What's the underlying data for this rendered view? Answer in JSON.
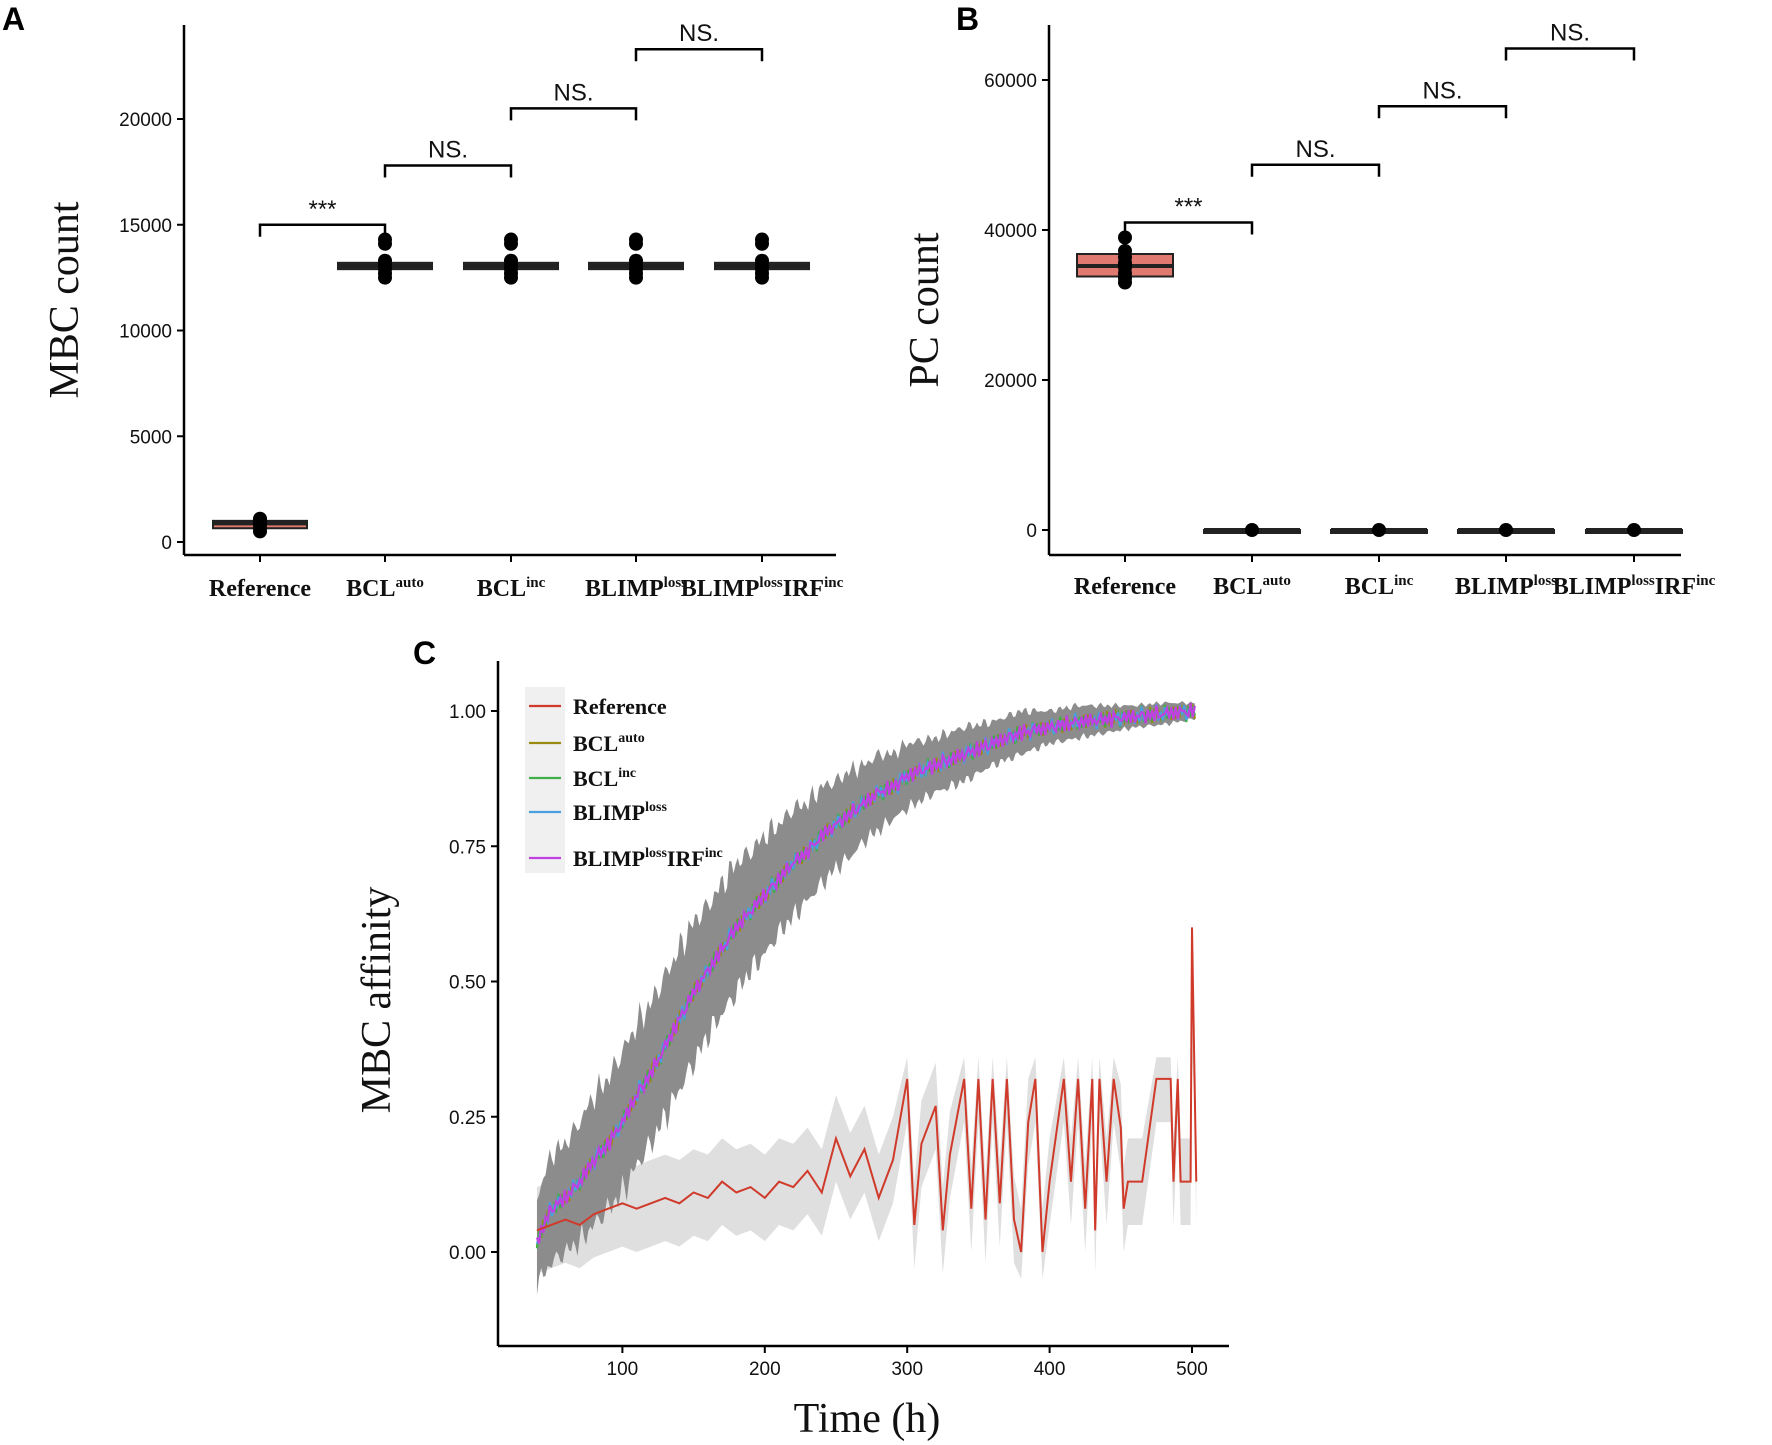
{
  "colors": {
    "reference": "#e07a70",
    "box_other": "#3a3a3a",
    "ref_line": "#d03a2a",
    "bcl_auto": "#9a8a10",
    "bcl_inc": "#3fae49",
    "blimp_loss": "#4a9fe0",
    "blimp_irf": "#c040e0",
    "band_dark": "#8c8c8c",
    "band_light": "#dcdcdc",
    "legend_bg": "#f0f0f0"
  },
  "categories": [
    {
      "base": "Reference",
      "sup": ""
    },
    {
      "base": "BCL",
      "sup": "auto"
    },
    {
      "base": "BCL",
      "sup": "inc"
    },
    {
      "base": "BLIMP",
      "sup": "loss"
    },
    {
      "base": "BLIMP",
      "sup": "loss",
      "base2": "IRF",
      "sup2": "inc"
    }
  ],
  "chart_data": [
    {
      "panel": "A",
      "type": "box",
      "ylabel": "MBC count",
      "ylim": [
        0,
        24000
      ],
      "yticks": [
        "0",
        "5000",
        "10000",
        "15000",
        "20000"
      ],
      "ytick_values": [
        0,
        5000,
        10000,
        15000,
        20000
      ],
      "boxes": [
        {
          "q1": 650,
          "median": 880,
          "q3": 1000,
          "points": [
            500,
            650,
            800,
            900,
            1000,
            1100
          ]
        },
        {
          "q1": 12900,
          "median": 13050,
          "q3": 13200,
          "points": [
            12500,
            12700,
            12900,
            13100,
            13300,
            14100,
            14300
          ]
        },
        {
          "q1": 12900,
          "median": 13050,
          "q3": 13200,
          "points": [
            12500,
            12700,
            12900,
            13100,
            13300,
            14100,
            14300
          ]
        },
        {
          "q1": 12900,
          "median": 13050,
          "q3": 13200,
          "points": [
            12500,
            12700,
            12900,
            13100,
            13300,
            14100,
            14300
          ]
        },
        {
          "q1": 12900,
          "median": 13050,
          "q3": 13200,
          "points": [
            12500,
            12700,
            12900,
            13100,
            13300,
            14100,
            14300
          ]
        }
      ],
      "comparisons": [
        {
          "from": 0,
          "to": 1,
          "label": "***",
          "y": 15000
        },
        {
          "from": 1,
          "to": 2,
          "label": "NS.",
          "y": 17800
        },
        {
          "from": 2,
          "to": 3,
          "label": "NS.",
          "y": 20500
        },
        {
          "from": 3,
          "to": 4,
          "label": "NS.",
          "y": 23300
        }
      ]
    },
    {
      "panel": "B",
      "type": "box",
      "ylabel": "PC count",
      "ylim": [
        -3000,
        68000
      ],
      "yticks": [
        "0",
        "20000",
        "40000",
        "60000"
      ],
      "ytick_values": [
        0,
        20000,
        40000,
        60000
      ],
      "boxes": [
        {
          "q1": 33800,
          "median": 35200,
          "q3": 36800,
          "points": [
            33000,
            33600,
            34200,
            35000,
            35600,
            36400,
            37200,
            39000
          ]
        },
        {
          "q1": 0,
          "median": 0,
          "q3": 0,
          "points": [
            0
          ]
        },
        {
          "q1": 0,
          "median": 0,
          "q3": 0,
          "points": [
            0
          ]
        },
        {
          "q1": 0,
          "median": 0,
          "q3": 0,
          "points": [
            0
          ]
        },
        {
          "q1": 0,
          "median": 0,
          "q3": 0,
          "points": [
            0
          ]
        }
      ],
      "comparisons": [
        {
          "from": 0,
          "to": 1,
          "label": "***",
          "y": 41000
        },
        {
          "from": 1,
          "to": 2,
          "label": "NS.",
          "y": 48700
        },
        {
          "from": 2,
          "to": 3,
          "label": "NS.",
          "y": 56500
        },
        {
          "from": 3,
          "to": 4,
          "label": "NS.",
          "y": 64200
        }
      ]
    },
    {
      "panel": "C",
      "type": "line",
      "xlabel": "Time (h)",
      "ylabel": "MBC affinity",
      "xticks": [
        "100",
        "200",
        "300",
        "400",
        "500"
      ],
      "xtick_values": [
        100,
        200,
        300,
        400,
        500
      ],
      "yticks": [
        "0.00",
        "0.25",
        "0.50",
        "0.75",
        "1.00"
      ],
      "ytick_values": [
        0,
        0.25,
        0.5,
        0.75,
        1.0
      ],
      "legend_position": "top-left",
      "legend": [
        {
          "base": "Reference",
          "sup": ""
        },
        {
          "base": "BCL",
          "sup": "auto"
        },
        {
          "base": "BCL",
          "sup": "inc"
        },
        {
          "base": "BLIMP",
          "sup": "loss"
        },
        {
          "base": "BLIMP",
          "sup": "loss",
          "base2": "IRF",
          "sup2": "inc"
        }
      ],
      "mutant_mean": {
        "x": [
          40,
          50,
          60,
          70,
          80,
          90,
          100,
          110,
          120,
          130,
          140,
          150,
          160,
          170,
          180,
          190,
          200,
          210,
          220,
          230,
          240,
          250,
          260,
          270,
          280,
          290,
          300,
          320,
          340,
          360,
          380,
          400,
          420,
          440,
          460,
          480,
          500
        ],
        "y": [
          0.02,
          0.08,
          0.1,
          0.13,
          0.17,
          0.2,
          0.24,
          0.29,
          0.33,
          0.38,
          0.43,
          0.48,
          0.52,
          0.56,
          0.6,
          0.63,
          0.66,
          0.69,
          0.72,
          0.74,
          0.77,
          0.79,
          0.81,
          0.83,
          0.85,
          0.86,
          0.88,
          0.9,
          0.92,
          0.94,
          0.96,
          0.97,
          0.98,
          0.985,
          0.99,
          0.995,
          1.0
        ],
        "band": [
          0.08,
          0.1,
          0.1,
          0.11,
          0.12,
          0.12,
          0.13,
          0.13,
          0.13,
          0.13,
          0.13,
          0.13,
          0.12,
          0.12,
          0.12,
          0.11,
          0.11,
          0.1,
          0.1,
          0.09,
          0.09,
          0.08,
          0.08,
          0.07,
          0.07,
          0.06,
          0.06,
          0.05,
          0.05,
          0.04,
          0.04,
          0.03,
          0.03,
          0.025,
          0.02,
          0.02,
          0.015
        ]
      },
      "reference": {
        "x": [
          40,
          50,
          60,
          70,
          80,
          90,
          100,
          110,
          120,
          130,
          140,
          150,
          160,
          170,
          180,
          190,
          200,
          210,
          220,
          230,
          240,
          250,
          260,
          270,
          280,
          290,
          300,
          305,
          310,
          320,
          325,
          330,
          340,
          345,
          350,
          355,
          360,
          365,
          370,
          375,
          380,
          385,
          390,
          395,
          400,
          410,
          415,
          420,
          425,
          430,
          432,
          435,
          440,
          445,
          450,
          452,
          455,
          465,
          475,
          485,
          487,
          490,
          492,
          499,
          500,
          503
        ],
        "y": [
          0.04,
          0.05,
          0.06,
          0.05,
          0.07,
          0.08,
          0.09,
          0.08,
          0.09,
          0.1,
          0.09,
          0.11,
          0.1,
          0.13,
          0.11,
          0.12,
          0.1,
          0.13,
          0.12,
          0.15,
          0.11,
          0.21,
          0.14,
          0.19,
          0.1,
          0.17,
          0.32,
          0.05,
          0.2,
          0.27,
          0.04,
          0.18,
          0.32,
          0.08,
          0.32,
          0.06,
          0.32,
          0.09,
          0.32,
          0.06,
          0.0,
          0.24,
          0.32,
          0.0,
          0.13,
          0.32,
          0.13,
          0.32,
          0.08,
          0.32,
          0.04,
          0.32,
          0.13,
          0.32,
          0.23,
          0.08,
          0.13,
          0.13,
          0.32,
          0.32,
          0.13,
          0.32,
          0.13,
          0.13,
          0.6,
          0.13
        ],
        "band": 0.08
      }
    }
  ],
  "panel_labels": [
    "A",
    "B",
    "C"
  ]
}
